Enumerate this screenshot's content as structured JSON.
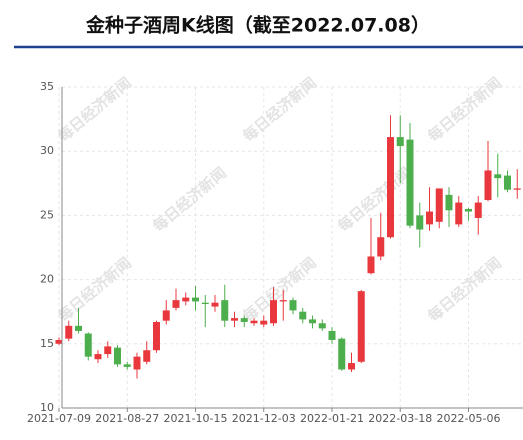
{
  "chart_data": {
    "type": "candlestick",
    "title": "金种子酒周K线图（截至2022.07.08）",
    "watermark": "每日经济新闻",
    "categories": [
      "2021-07-09",
      null,
      null,
      null,
      null,
      null,
      null,
      "2021-08-27",
      null,
      null,
      null,
      null,
      null,
      null,
      "2021-10-15",
      null,
      null,
      null,
      null,
      null,
      null,
      "2021-12-03",
      null,
      null,
      null,
      null,
      null,
      null,
      "2022-01-21",
      null,
      null,
      null,
      null,
      null,
      null,
      "2022-03-18",
      null,
      null,
      null,
      null,
      null,
      null,
      "2022-05-06",
      null,
      null,
      null,
      null,
      null
    ],
    "open": [
      15.0,
      15.4,
      16.4,
      15.8,
      13.8,
      14.2,
      14.7,
      13.4,
      13.0,
      13.6,
      14.5,
      16.8,
      17.8,
      18.3,
      18.6,
      18.2,
      17.9,
      18.4,
      16.8,
      17.0,
      16.6,
      16.5,
      16.6,
      18.3,
      18.4,
      17.5,
      16.9,
      16.6,
      16.0,
      15.4,
      13.0,
      13.6,
      20.5,
      21.8,
      23.3,
      31.1,
      30.9,
      25.0,
      24.3,
      24.5,
      26.6,
      24.3,
      25.5,
      24.8,
      26.2,
      28.2,
      28.1,
      27.0
    ],
    "high": [
      15.5,
      16.8,
      17.8,
      15.9,
      14.5,
      15.2,
      14.9,
      13.6,
      14.3,
      15.2,
      16.8,
      18.4,
      19.3,
      19.0,
      19.5,
      18.8,
      18.8,
      19.6,
      17.5,
      17.2,
      17.0,
      17.2,
      19.4,
      19.2,
      18.6,
      17.8,
      17.2,
      16.9,
      16.3,
      15.5,
      14.3,
      19.2,
      24.8,
      25.2,
      32.8,
      32.8,
      32.2,
      26.0,
      27.2,
      27.1,
      27.2,
      26.5,
      25.6,
      26.5,
      30.8,
      29.8,
      28.5,
      28.6
    ],
    "low": [
      14.9,
      15.2,
      15.8,
      13.7,
      13.5,
      13.9,
      13.2,
      13.0,
      12.3,
      13.4,
      14.3,
      16.5,
      17.6,
      18.0,
      17.6,
      16.3,
      17.5,
      16.3,
      16.3,
      16.3,
      16.4,
      16.3,
      16.4,
      16.8,
      17.3,
      16.6,
      16.2,
      16.0,
      15.0,
      12.9,
      12.8,
      13.5,
      20.4,
      21.5,
      23.2,
      27.5,
      24.0,
      22.5,
      23.8,
      24.0,
      24.1,
      24.1,
      24.6,
      23.5,
      26.1,
      26.4,
      26.8,
      26.3
    ],
    "close": [
      15.3,
      16.4,
      16.0,
      14.0,
      14.2,
      14.8,
      13.4,
      13.2,
      14.0,
      14.5,
      16.7,
      17.6,
      18.4,
      18.6,
      18.3,
      18.1,
      18.2,
      16.8,
      17.0,
      16.7,
      16.8,
      16.8,
      18.4,
      18.4,
      17.6,
      16.9,
      16.6,
      16.2,
      15.3,
      13.0,
      13.5,
      19.1,
      21.8,
      23.3,
      31.1,
      30.4,
      24.2,
      23.9,
      25.3,
      27.1,
      25.4,
      26.0,
      25.3,
      26.0,
      28.5,
      27.9,
      27.0,
      27.1
    ],
    "up_color": "#e8383d",
    "down_color": "#4cae4c",
    "ylim": [
      10,
      35
    ],
    "yticks": [
      10,
      15,
      20,
      25,
      30,
      35
    ],
    "grid": true
  }
}
